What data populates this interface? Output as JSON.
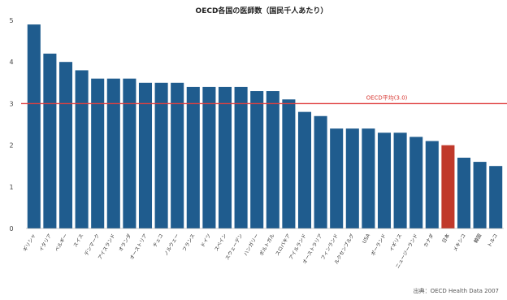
{
  "chart_data": {
    "type": "bar",
    "title": "OECD各国の医師数（国民千人あたり）",
    "categories": [
      "ギリシャ",
      "イタリア",
      "ベルギー",
      "スイス",
      "デンマーク",
      "アイスランド",
      "オランダ",
      "オーストリア",
      "チェコ",
      "ノルウェー",
      "フランス",
      "ドイツ",
      "スペイン",
      "スウェーデン",
      "ハンガリー",
      "ポルトガル",
      "スロバキア",
      "アイルランド",
      "オーストラリア",
      "フィンランド",
      "ルクセンブルグ",
      "USA",
      "ポーランド",
      "イギリス",
      "ニュージーランド",
      "カナダ",
      "日本",
      "メキシコ",
      "韓国",
      "トルコ"
    ],
    "values": [
      4.9,
      4.2,
      4.0,
      3.8,
      3.6,
      3.6,
      3.6,
      3.5,
      3.5,
      3.5,
      3.4,
      3.4,
      3.4,
      3.4,
      3.3,
      3.3,
      3.1,
      2.8,
      2.7,
      2.4,
      2.4,
      2.4,
      2.3,
      2.3,
      2.2,
      2.1,
      2.0,
      1.7,
      1.6,
      1.5
    ],
    "highlight": "日本",
    "ylim": [
      0,
      5
    ],
    "yticks": [
      "0",
      "1",
      "2",
      "3",
      "4",
      "5"
    ],
    "grid": false,
    "reference_line": {
      "value": 3.0,
      "label": "OECD平均(3.0)"
    },
    "colors": {
      "bar": "#1f5c8e",
      "highlight": "#c0392b",
      "reference": "#e04040"
    },
    "source": "出典：OECD Health Data 2007"
  }
}
